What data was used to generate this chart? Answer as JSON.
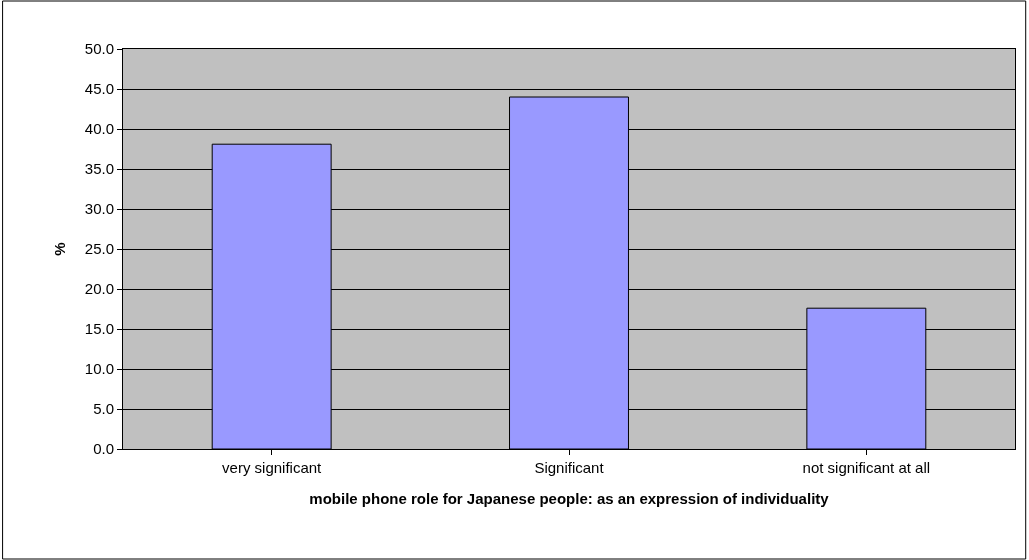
{
  "chart_data": {
    "type": "bar",
    "categories": [
      "very significant",
      "Significant",
      "not significant at all"
    ],
    "values": [
      38.1,
      44.0,
      17.6
    ],
    "color": "#9999ff",
    "xlabel": "mobile phone role for Japanese people: as an expression of individuality",
    "ylabel": "%",
    "ylim": [
      0,
      50
    ],
    "yticks": [
      {
        "value": 0,
        "label": "0.0"
      },
      {
        "value": 5,
        "label": "5.0"
      },
      {
        "value": 10,
        "label": "10.0"
      },
      {
        "value": 15,
        "label": "15.0"
      },
      {
        "value": 20,
        "label": "20.0"
      },
      {
        "value": 25,
        "label": "25.0"
      },
      {
        "value": 30,
        "label": "30.0"
      },
      {
        "value": 35,
        "label": "35.0"
      },
      {
        "value": 40,
        "label": "40.0"
      },
      {
        "value": 45,
        "label": "45.0"
      },
      {
        "value": 50,
        "label": "50.0"
      }
    ],
    "grid": "y"
  }
}
